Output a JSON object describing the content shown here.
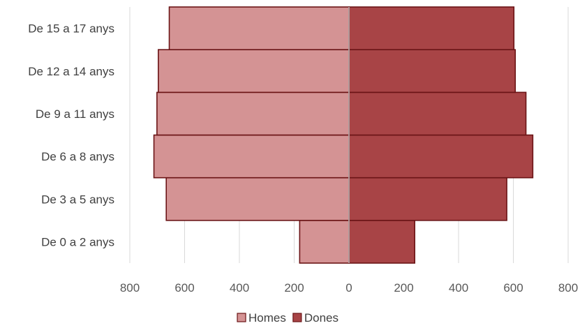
{
  "chart_data": {
    "type": "bar",
    "orientation": "horizontal",
    "layout": "population-pyramid",
    "categories": [
      "De 0 a 2 anys",
      "De 3 a 5 anys",
      "De 6 a 8 anys",
      "De 9 a 11 anys",
      "De 12 a 14 anys",
      "De 15 a 17 anys"
    ],
    "series": [
      {
        "name": "Homes",
        "side": "left",
        "color": "#d49394",
        "values": [
          180,
          667,
          712,
          701,
          696,
          656
        ]
      },
      {
        "name": "Dones",
        "side": "right",
        "color": "#a84446",
        "values": [
          240,
          576,
          671,
          646,
          607,
          602
        ]
      }
    ],
    "xticks": [
      "800",
      "600",
      "400",
      "200",
      "0",
      "200",
      "400",
      "600",
      "800"
    ],
    "xlim": [
      -800,
      800
    ],
    "grid": "vertical",
    "legend": "bottom",
    "title": "",
    "xlabel": "",
    "ylabel": ""
  }
}
